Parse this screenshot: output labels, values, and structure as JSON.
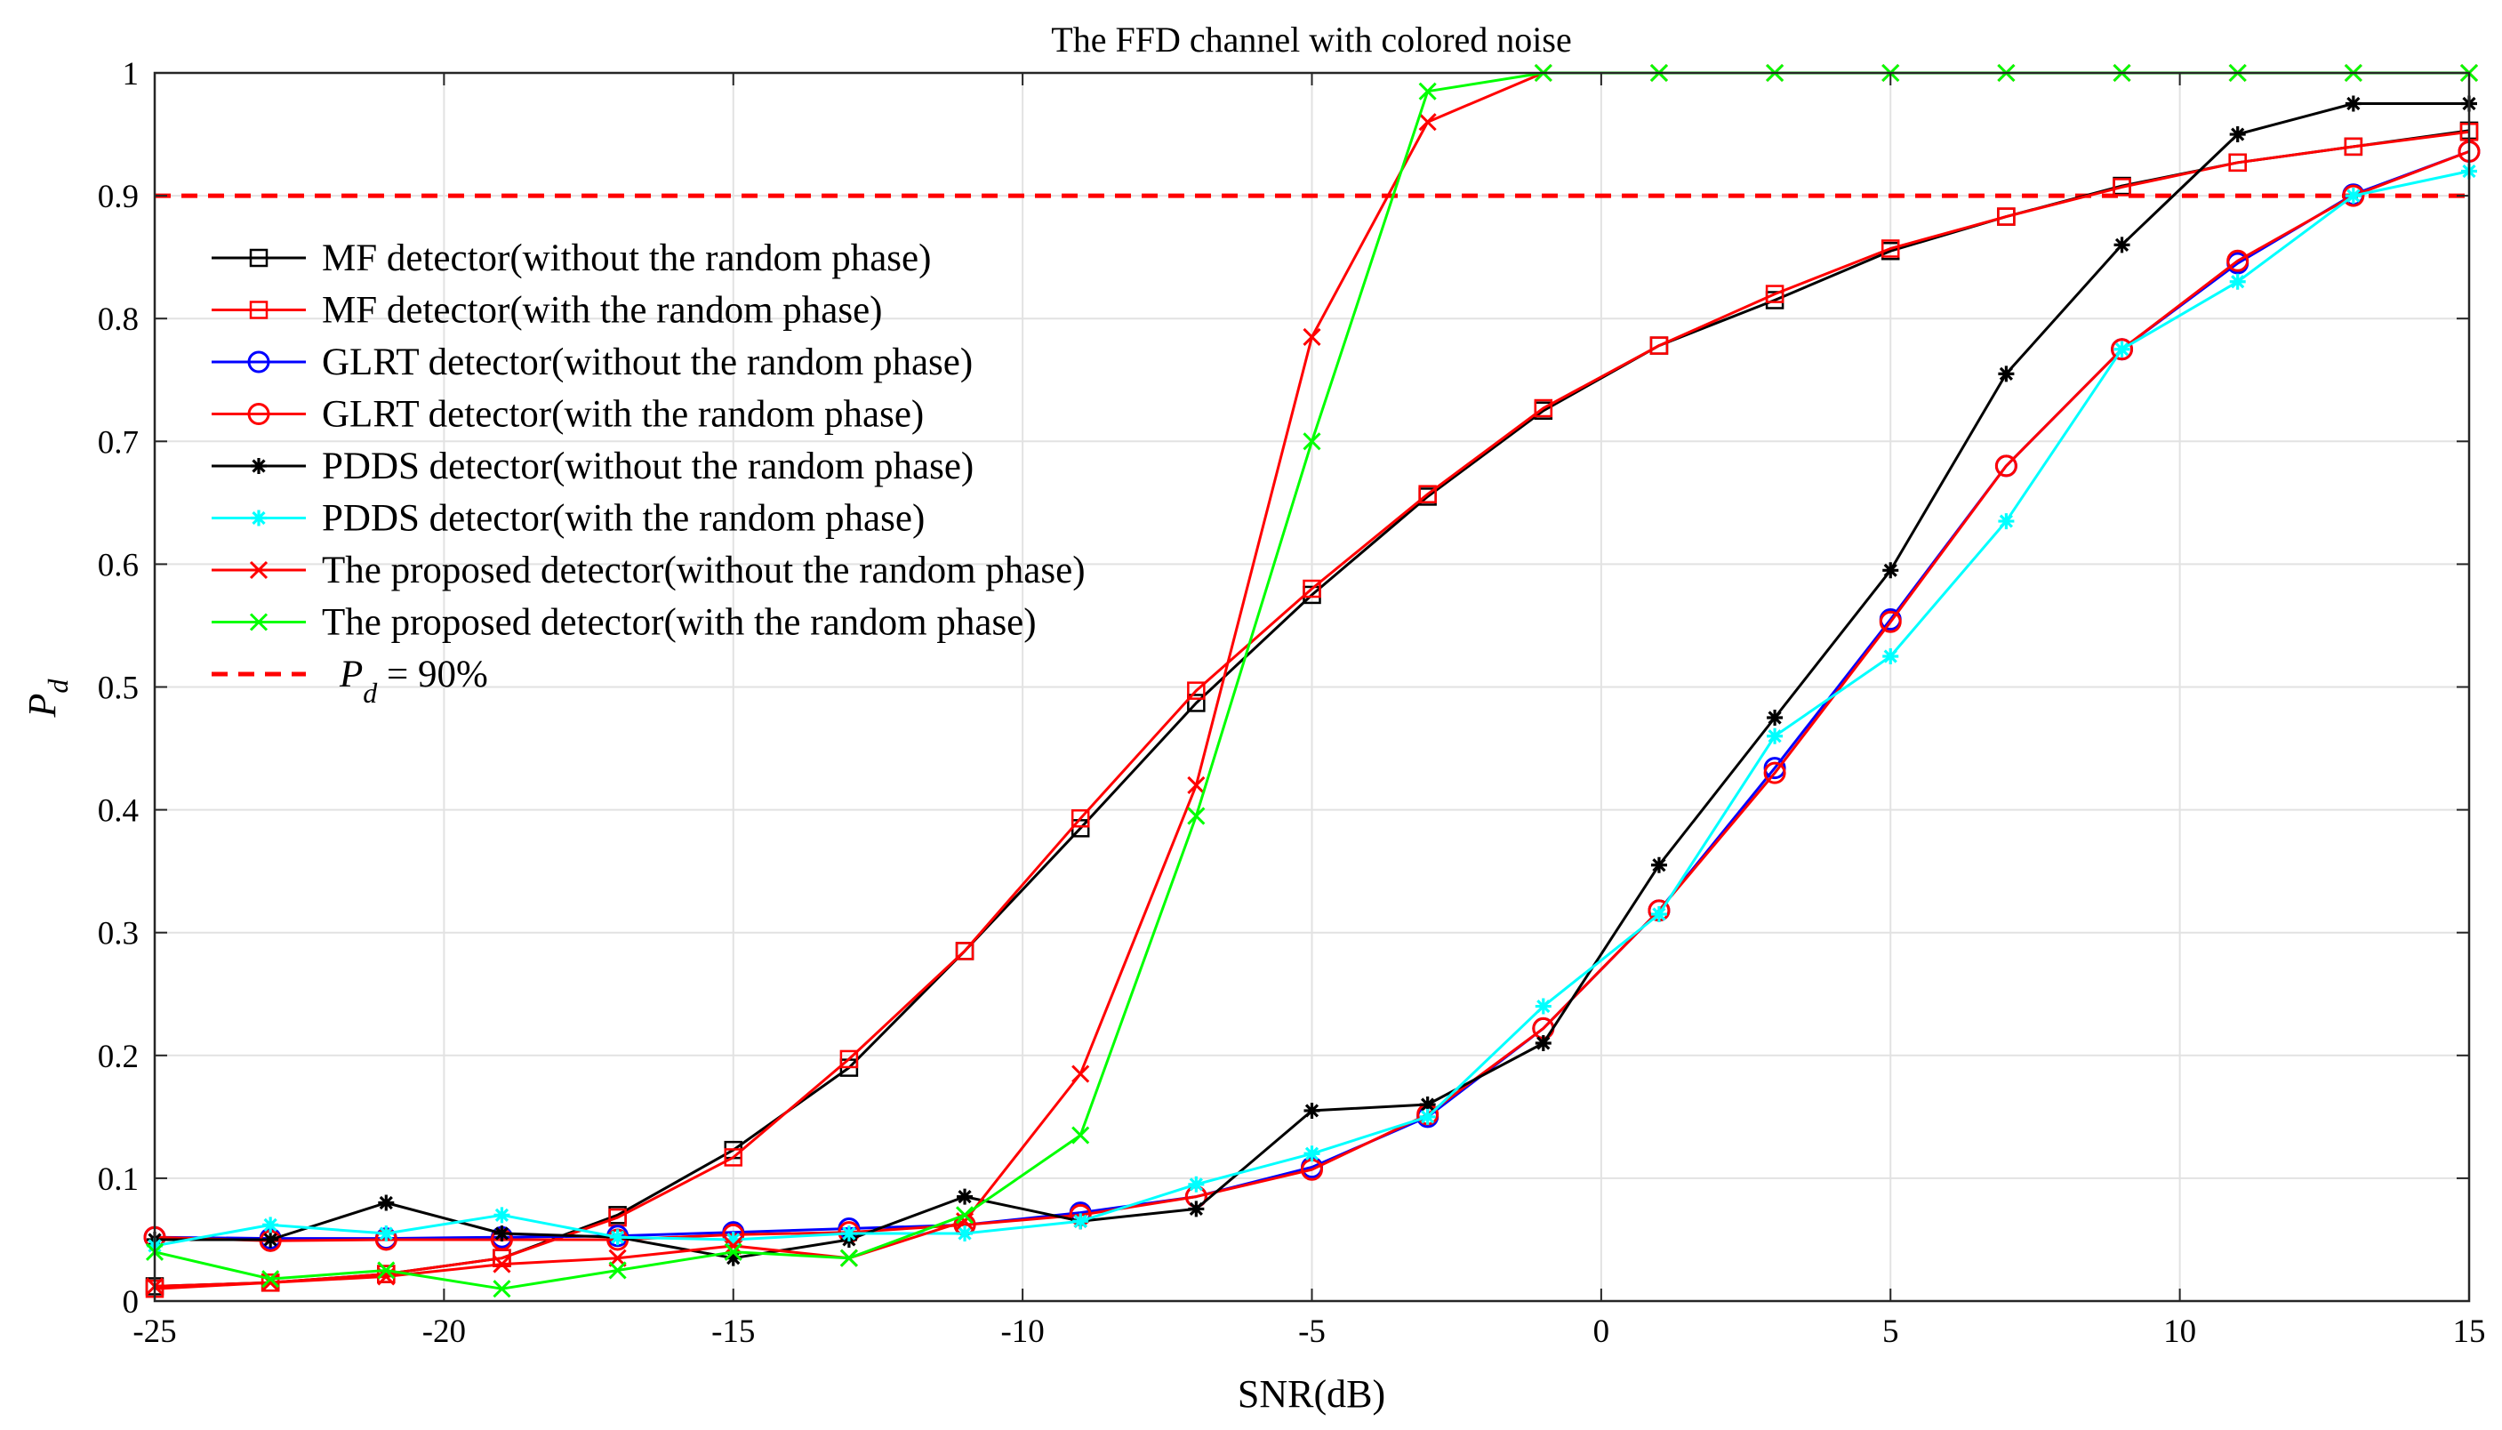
{
  "chart_data": {
    "type": "line",
    "title": "The FFD channel with colored noise",
    "xlabel": "SNR(dB)",
    "ylabel": {
      "main": "P",
      "sub": "d"
    },
    "xlim": [
      -25,
      15
    ],
    "ylim": [
      0,
      1
    ],
    "xticks": [
      -25,
      -20,
      -15,
      -10,
      -5,
      0,
      5,
      10,
      15
    ],
    "xtick_labels": [
      "-25",
      "-20",
      "-15",
      "-10",
      "-5",
      "0",
      "5",
      "10",
      "15"
    ],
    "yticks": [
      0,
      0.1,
      0.2,
      0.3,
      0.4,
      0.5,
      0.6,
      0.7,
      0.8,
      0.9,
      1
    ],
    "ytick_labels": [
      "0",
      "0.1",
      "0.2",
      "0.3",
      "0.4",
      "0.5",
      "0.6",
      "0.7",
      "0.8",
      "0.9",
      "1"
    ],
    "grid": true,
    "legend_position": "left",
    "x": [
      -25,
      -23,
      -21,
      -19,
      -17,
      -15,
      -13,
      -11,
      -9,
      -7,
      -5,
      -3,
      -1,
      1,
      3,
      5,
      7,
      9,
      11,
      13,
      15
    ],
    "series": [
      {
        "name": "MF detector(without the random phase)",
        "color": "#000000",
        "marker": "square",
        "values": [
          0.012,
          0.015,
          0.022,
          0.035,
          0.07,
          0.123,
          0.19,
          0.285,
          0.385,
          0.487,
          0.575,
          0.655,
          0.725,
          0.778,
          0.815,
          0.855,
          0.883,
          0.908,
          0.927,
          0.94,
          0.953
        ]
      },
      {
        "name": "MF detector(with the random phase)",
        "color": "#ff0000",
        "marker": "square",
        "values": [
          0.01,
          0.015,
          0.022,
          0.035,
          0.068,
          0.117,
          0.197,
          0.285,
          0.393,
          0.497,
          0.58,
          0.657,
          0.727,
          0.778,
          0.82,
          0.857,
          0.883,
          0.907,
          0.927,
          0.94,
          0.952
        ]
      },
      {
        "name": "GLRT detector(without the random phase)",
        "color": "#0000ff",
        "marker": "circle",
        "values": [
          0.052,
          0.051,
          0.051,
          0.052,
          0.053,
          0.056,
          0.059,
          0.062,
          0.072,
          0.085,
          0.109,
          0.15,
          0.222,
          0.318,
          0.434,
          0.555,
          0.68,
          0.775,
          0.845,
          0.901,
          0.936
        ]
      },
      {
        "name": "GLRT detector(with the random phase)",
        "color": "#ff0000",
        "marker": "circle",
        "values": [
          0.052,
          0.049,
          0.05,
          0.05,
          0.05,
          0.054,
          0.056,
          0.062,
          0.07,
          0.085,
          0.107,
          0.152,
          0.222,
          0.318,
          0.43,
          0.553,
          0.68,
          0.775,
          0.847,
          0.9,
          0.936
        ]
      },
      {
        "name": "PDDS detector(without the random phase)",
        "color": "#000000",
        "marker": "asterisk",
        "values": [
          0.05,
          0.05,
          0.08,
          0.055,
          0.052,
          0.035,
          0.05,
          0.085,
          0.065,
          0.075,
          0.155,
          0.16,
          0.21,
          0.355,
          0.475,
          0.595,
          0.755,
          0.86,
          0.95,
          0.975,
          0.975
        ]
      },
      {
        "name": "PDDS detector(with the random phase)",
        "color": "#00ffff",
        "marker": "asterisk",
        "values": [
          0.045,
          0.062,
          0.055,
          0.07,
          0.052,
          0.05,
          0.055,
          0.055,
          0.065,
          0.095,
          0.12,
          0.15,
          0.24,
          0.315,
          0.46,
          0.525,
          0.635,
          0.775,
          0.83,
          0.9,
          0.92
        ]
      },
      {
        "name": "The proposed detector(without the random phase)",
        "color": "#ff0000",
        "marker": "x",
        "values": [
          0.012,
          0.015,
          0.02,
          0.03,
          0.035,
          0.045,
          0.035,
          0.065,
          0.185,
          0.42,
          0.785,
          0.96,
          1.0,
          1.0,
          1.0,
          1.0,
          1.0,
          1.0,
          1.0,
          1.0,
          1.0
        ]
      },
      {
        "name": "The proposed detector(with the random phase)",
        "color": "#00ff00",
        "marker": "x",
        "values": [
          0.04,
          0.018,
          0.025,
          0.01,
          0.025,
          0.04,
          0.035,
          0.07,
          0.135,
          0.395,
          0.7,
          0.985,
          1.0,
          1.0,
          1.0,
          1.0,
          1.0,
          1.0,
          1.0,
          1.0,
          1.0
        ]
      }
    ],
    "reference_line": {
      "y": 0.9,
      "color": "#ff0000",
      "style": "dashed",
      "label_main": "P",
      "label_sub": "d",
      "label_rest": " = 90%"
    }
  }
}
